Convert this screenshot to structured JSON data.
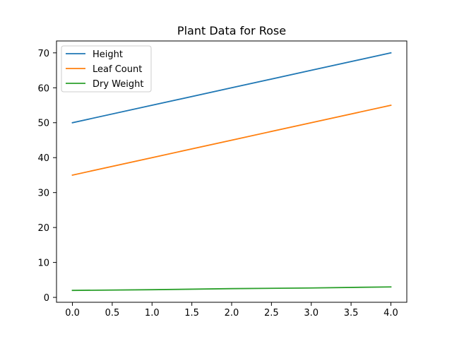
{
  "chart_data": {
    "type": "line",
    "title": "Plant Data for Rose",
    "xlabel": "",
    "ylabel": "",
    "x": [
      0,
      1,
      2,
      3,
      4
    ],
    "xlim": [
      -0.2,
      4.2
    ],
    "ylim": [
      -1.4,
      73.4
    ],
    "x_ticks": [
      0,
      0.5,
      1,
      1.5,
      2,
      2.5,
      3,
      3.5,
      4
    ],
    "x_tick_labels": [
      "0.0",
      "0.5",
      "1.0",
      "1.5",
      "2.0",
      "2.5",
      "3.0",
      "3.5",
      "4.0"
    ],
    "y_ticks": [
      0,
      10,
      20,
      30,
      40,
      50,
      60,
      70
    ],
    "y_tick_labels": [
      "0",
      "10",
      "20",
      "30",
      "40",
      "50",
      "60",
      "70"
    ],
    "grid": false,
    "legend_position": "top-left",
    "series": [
      {
        "name": "Height",
        "values": [
          50,
          55,
          60,
          65,
          70
        ],
        "color": "#1f77b4"
      },
      {
        "name": "Leaf Count",
        "values": [
          35,
          40,
          45,
          50,
          55
        ],
        "color": "#ff7f0e"
      },
      {
        "name": "Dry Weight",
        "values": [
          2,
          2.2,
          2.5,
          2.7,
          3
        ],
        "color": "#2ca02c"
      }
    ]
  }
}
